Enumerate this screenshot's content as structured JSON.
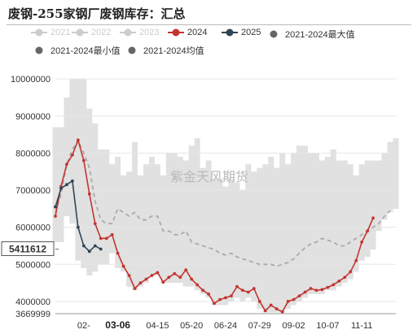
{
  "chart_data": {
    "type": "line",
    "title": "废钢-255家钢厂废钢库存：汇总",
    "watermark": "紫金天风期货",
    "xlabel": "",
    "ylabel": "",
    "ylim": [
      3669999,
      10200000
    ],
    "grid": true,
    "legend_position": "top",
    "y_ticks": [
      "10000000",
      "9000000",
      "8000000",
      "7000000",
      "6000000",
      "5000000",
      "4000000",
      "3669999"
    ],
    "x_ticks": [
      "02-",
      "03-06",
      "04-15",
      "05-20",
      "06-24",
      "07-29",
      "09-02",
      "10-07",
      "11-11"
    ],
    "x_tick_index": [
      5,
      11,
      18,
      24,
      30,
      36,
      42,
      48,
      54
    ],
    "highlight_x_label": "03-06",
    "highlight_y_label": "5411612",
    "highlight_y_value": 5411612,
    "legend": [
      {
        "name": "2021",
        "color": "#cccccc",
        "disabled": true,
        "style": "line-dot"
      },
      {
        "name": "2022",
        "color": "#cccccc",
        "disabled": true,
        "style": "line-dot"
      },
      {
        "name": "2023",
        "color": "#cccccc",
        "disabled": true,
        "style": "line-dot"
      },
      {
        "name": "2024",
        "color": "#c23531",
        "disabled": false,
        "style": "line-dot"
      },
      {
        "name": "2025",
        "color": "#2f4554",
        "disabled": false,
        "style": "line-dot"
      },
      {
        "name": "2021-2024最大值",
        "color": "#666666",
        "disabled": false,
        "style": "dot"
      },
      {
        "name": "2021-2024最小值",
        "color": "#666666",
        "disabled": false,
        "style": "dot"
      },
      {
        "name": "2021-2024均值",
        "color": "#666666",
        "disabled": false,
        "style": "dot"
      }
    ],
    "series": [
      {
        "name": "2024",
        "color": "#c23531",
        "start": 0,
        "values": [
          6300000,
          7100000,
          7700000,
          7950000,
          8350000,
          7800000,
          6900000,
          6100000,
          5700000,
          5700000,
          5800000,
          5300000,
          4950000,
          4700000,
          4350000,
          4500000,
          4600000,
          4700000,
          4780000,
          4520000,
          4650000,
          4750000,
          4650000,
          4850000,
          4600000,
          4450000,
          4300000,
          4200000,
          3950000,
          4050000,
          4100000,
          4150000,
          4400000,
          4300000,
          4250000,
          4350000,
          4000000,
          3750000,
          3900000,
          3800000,
          3720000,
          4000000,
          4050000,
          4150000,
          4250000,
          4350000,
          4300000,
          4320000,
          4380000,
          4450000,
          4550000,
          4650000,
          4800000,
          5100000,
          5600000,
          5900000,
          6250000
        ]
      },
      {
        "name": "2025",
        "color": "#2f4554",
        "start": 0,
        "values": [
          6550000,
          7050000,
          7150000,
          7250000,
          6000000,
          5500000,
          5350000,
          5500000,
          5411612
        ]
      },
      {
        "name": "2021-2024最大值",
        "color": "#dddddd",
        "start": 0,
        "values": [
          8700000,
          8700000,
          9500000,
          10000000,
          10000000,
          10000000,
          9200000,
          8800000,
          8100000,
          8100000,
          7700000,
          7900000,
          7400000,
          7500000,
          8300000,
          7400000,
          7700000,
          7900000,
          7700000,
          7400000,
          8000000,
          8000000,
          7900000,
          7800000,
          8200000,
          8400000,
          7600000,
          7800000,
          7300000,
          7300000,
          7100000,
          7300000,
          7200000,
          7000000,
          7700000,
          7500000,
          7600000,
          7700000,
          7900000,
          7600000,
          8000000,
          7700000,
          8000000,
          8200000,
          8200000,
          8000000,
          8000000,
          7800000,
          7900000,
          8100000,
          7800000,
          7800000,
          7700000,
          7400000,
          7700000,
          7800000,
          7800000,
          7800000,
          8000000,
          8300000,
          8400000
        ]
      },
      {
        "name": "2021-2024最小值",
        "color": "#dddddd",
        "start": 0,
        "values": [
          5600000,
          5600000,
          6300000,
          6100000,
          5100000,
          4900000,
          4700000,
          4800000,
          5000000,
          5000000,
          5300000,
          4900000,
          4800000,
          4400000,
          4300000,
          4400000,
          4500000,
          4700000,
          4700000,
          4500000,
          4500000,
          4500000,
          4500000,
          4400000,
          4400000,
          4300000,
          4200000,
          4100000,
          3900000,
          3900000,
          3900000,
          4000000,
          4100000,
          4000000,
          4100000,
          4000000,
          3800000,
          3700000,
          3700000,
          3700000,
          3700000,
          3800000,
          3900000,
          4000000,
          4100000,
          4200000,
          4200000,
          4200000,
          4300000,
          4300000,
          4400000,
          4500000,
          4600000,
          4800000,
          5100000,
          5200000,
          5400000,
          5900000,
          6200000,
          6400000,
          6500000
        ]
      },
      {
        "name": "2021-2024均值",
        "color": "#aaaaaa",
        "start": 0,
        "values": [
          6400000,
          6900000,
          7700000,
          8100000,
          8350000,
          8000000,
          7600000,
          6700000,
          6200000,
          6100000,
          6100000,
          6500000,
          6400000,
          6300000,
          6400000,
          6200000,
          6200000,
          6300000,
          6300000,
          5900000,
          5900000,
          5800000,
          5800000,
          5900000,
          5600000,
          5550000,
          5500000,
          5450000,
          5400000,
          5300000,
          5250000,
          5300000,
          5200000,
          5150000,
          5100000,
          5050000,
          5000000,
          5000000,
          5000000,
          4950000,
          5000000,
          5050000,
          5150000,
          5300000,
          5450000,
          5550000,
          5600000,
          5700000,
          5650000,
          5600000,
          5500000,
          5500000,
          5600000,
          5700000,
          5800000,
          5900000,
          6000000,
          6100000,
          6300000,
          6450000
        ]
      }
    ]
  }
}
